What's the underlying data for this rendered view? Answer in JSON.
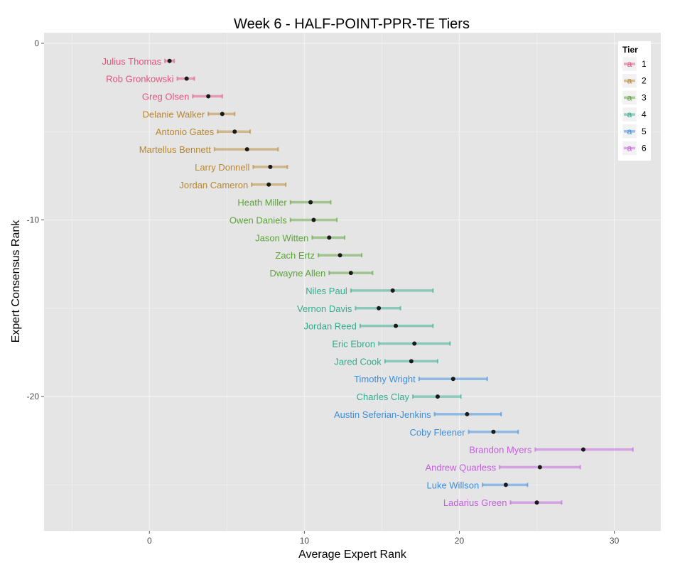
{
  "chart_data": {
    "type": "scatter",
    "title": "Week 6 - HALF-POINT-PPR-TE Tiers",
    "xlabel": "Average Expert Rank",
    "ylabel": "Expert Consensus Rank",
    "xlim": [
      -6.8,
      33
    ],
    "ylim": [
      -27.6,
      0.6
    ],
    "x_ticks": [
      0,
      10,
      20,
      30
    ],
    "y_ticks": [
      0,
      -10,
      -20
    ],
    "grid": true,
    "legend": {
      "title": "Tier",
      "position": "top-right",
      "key_glyph": "a",
      "entries": [
        {
          "label": "1",
          "color": "#e0547d"
        },
        {
          "label": "2",
          "color": "#b8872f"
        },
        {
          "label": "3",
          "color": "#5ba43a"
        },
        {
          "label": "4",
          "color": "#2fad8e"
        },
        {
          "label": "5",
          "color": "#3a8ee0"
        },
        {
          "label": "6",
          "color": "#c45de0"
        }
      ]
    },
    "players": [
      {
        "name": "Julius Thomas",
        "rank": 1,
        "avg": 1.3,
        "min": 1.0,
        "max": 1.6,
        "tier": 1
      },
      {
        "name": "Rob Gronkowski",
        "rank": 2,
        "avg": 2.4,
        "min": 1.8,
        "max": 2.9,
        "tier": 1
      },
      {
        "name": "Greg Olsen",
        "rank": 3,
        "avg": 3.8,
        "min": 2.8,
        "max": 4.7,
        "tier": 1
      },
      {
        "name": "Delanie Walker",
        "rank": 4,
        "avg": 4.7,
        "min": 3.8,
        "max": 5.5,
        "tier": 2
      },
      {
        "name": "Antonio Gates",
        "rank": 5,
        "avg": 5.5,
        "min": 4.4,
        "max": 6.5,
        "tier": 2
      },
      {
        "name": "Martellus Bennett",
        "rank": 6,
        "avg": 6.3,
        "min": 4.2,
        "max": 8.3,
        "tier": 2
      },
      {
        "name": "Larry Donnell",
        "rank": 7,
        "avg": 7.8,
        "min": 6.7,
        "max": 8.9,
        "tier": 2
      },
      {
        "name": "Jordan Cameron",
        "rank": 8,
        "avg": 7.7,
        "min": 6.6,
        "max": 8.8,
        "tier": 2
      },
      {
        "name": "Heath Miller",
        "rank": 9,
        "avg": 10.4,
        "min": 9.1,
        "max": 11.7,
        "tier": 3
      },
      {
        "name": "Owen Daniels",
        "rank": 10,
        "avg": 10.6,
        "min": 9.1,
        "max": 12.1,
        "tier": 3
      },
      {
        "name": "Jason Witten",
        "rank": 11,
        "avg": 11.6,
        "min": 10.5,
        "max": 12.6,
        "tier": 3
      },
      {
        "name": "Zach Ertz",
        "rank": 12,
        "avg": 12.3,
        "min": 10.9,
        "max": 13.7,
        "tier": 3
      },
      {
        "name": "Dwayne Allen",
        "rank": 13,
        "avg": 13.0,
        "min": 11.6,
        "max": 14.4,
        "tier": 3
      },
      {
        "name": "Niles Paul",
        "rank": 14,
        "avg": 15.7,
        "min": 13.0,
        "max": 18.3,
        "tier": 4
      },
      {
        "name": "Vernon Davis",
        "rank": 15,
        "avg": 14.8,
        "min": 13.3,
        "max": 16.2,
        "tier": 4
      },
      {
        "name": "Jordan Reed",
        "rank": 16,
        "avg": 15.9,
        "min": 13.6,
        "max": 18.3,
        "tier": 4
      },
      {
        "name": "Eric Ebron",
        "rank": 17,
        "avg": 17.1,
        "min": 14.8,
        "max": 19.4,
        "tier": 4
      },
      {
        "name": "Jared Cook",
        "rank": 18,
        "avg": 16.9,
        "min": 15.2,
        "max": 18.6,
        "tier": 4
      },
      {
        "name": "Timothy Wright",
        "rank": 19,
        "avg": 19.6,
        "min": 17.4,
        "max": 21.8,
        "tier": 5
      },
      {
        "name": "Charles Clay",
        "rank": 20,
        "avg": 18.6,
        "min": 17.0,
        "max": 20.1,
        "tier": 4
      },
      {
        "name": "Austin Seferian-Jenkins",
        "rank": 21,
        "avg": 20.5,
        "min": 18.4,
        "max": 22.7,
        "tier": 5
      },
      {
        "name": "Coby Fleener",
        "rank": 22,
        "avg": 22.2,
        "min": 20.6,
        "max": 23.8,
        "tier": 5
      },
      {
        "name": "Brandon Myers",
        "rank": 23,
        "avg": 28.0,
        "min": 24.9,
        "max": 31.2,
        "tier": 6
      },
      {
        "name": "Andrew Quarless",
        "rank": 24,
        "avg": 25.2,
        "min": 22.6,
        "max": 27.8,
        "tier": 6
      },
      {
        "name": "Luke Willson",
        "rank": 25,
        "avg": 23.0,
        "min": 21.5,
        "max": 24.4,
        "tier": 5
      },
      {
        "name": "Ladarius Green",
        "rank": 26,
        "avg": 25.0,
        "min": 23.3,
        "max": 26.6,
        "tier": 6
      }
    ]
  }
}
